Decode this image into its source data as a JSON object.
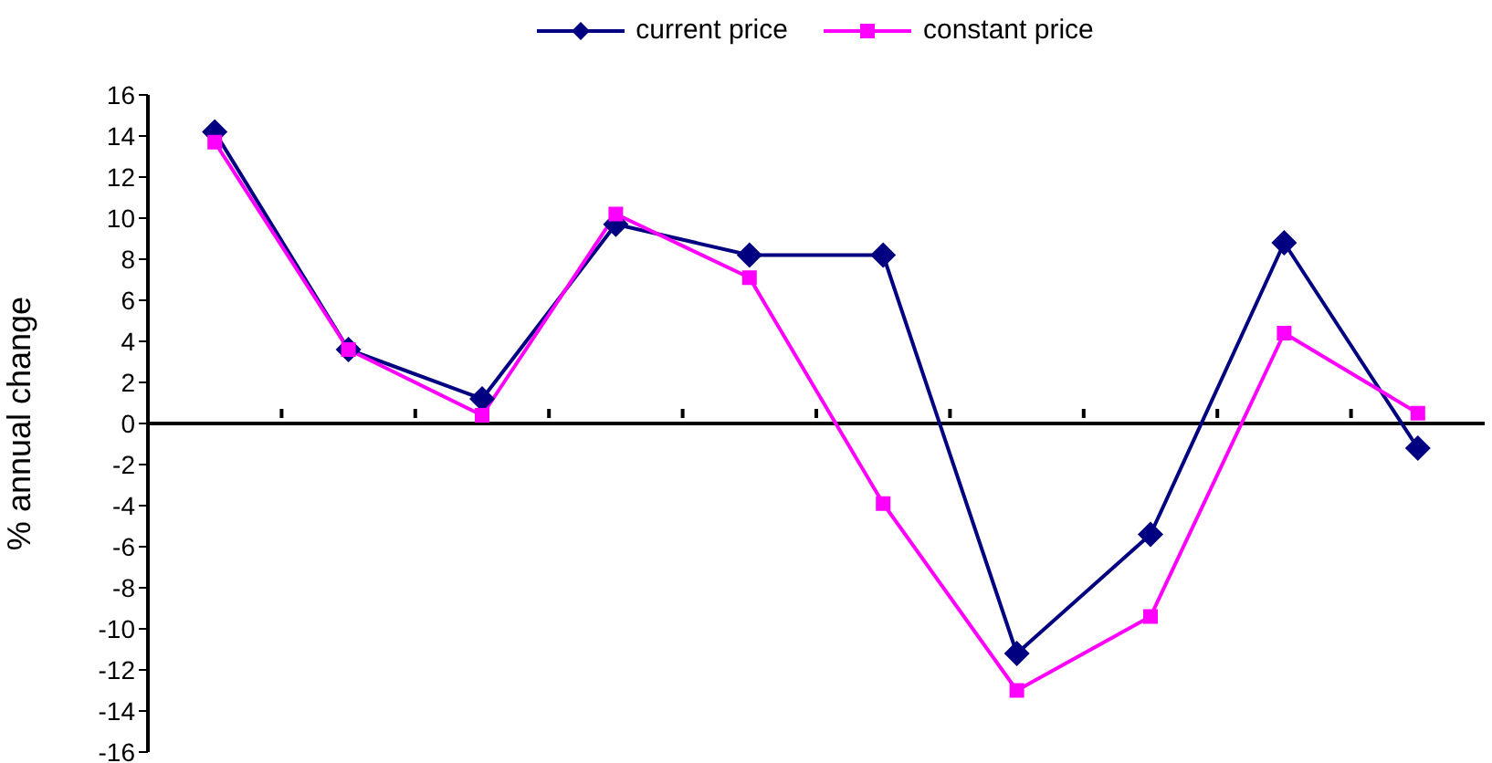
{
  "chart_data": {
    "type": "line",
    "ylabel": "% annual change",
    "categories": [
      null,
      null,
      null,
      null,
      null,
      null,
      null,
      null,
      null,
      null
    ],
    "series": [
      {
        "name": "current price",
        "color": "#000080",
        "marker": "diamond",
        "values": [
          14.2,
          3.6,
          1.2,
          9.7,
          8.2,
          8.2,
          -11.2,
          -5.4,
          8.8,
          -1.2
        ]
      },
      {
        "name": "constant price",
        "color": "#ff00ff",
        "marker": "square",
        "values": [
          13.7,
          3.6,
          0.4,
          10.2,
          7.1,
          -3.9,
          -13.0,
          -9.4,
          4.4,
          0.5
        ]
      }
    ],
    "ylim": [
      -16,
      16
    ],
    "yticks": [
      -16,
      -14,
      -12,
      -10,
      -8,
      -6,
      -4,
      -2,
      0,
      2,
      4,
      6,
      8,
      10,
      12,
      14,
      16
    ],
    "ref_lines": [
      {
        "axis": "y",
        "value": 0,
        "color": "#000000"
      }
    ],
    "grid": false,
    "legend": "top"
  }
}
